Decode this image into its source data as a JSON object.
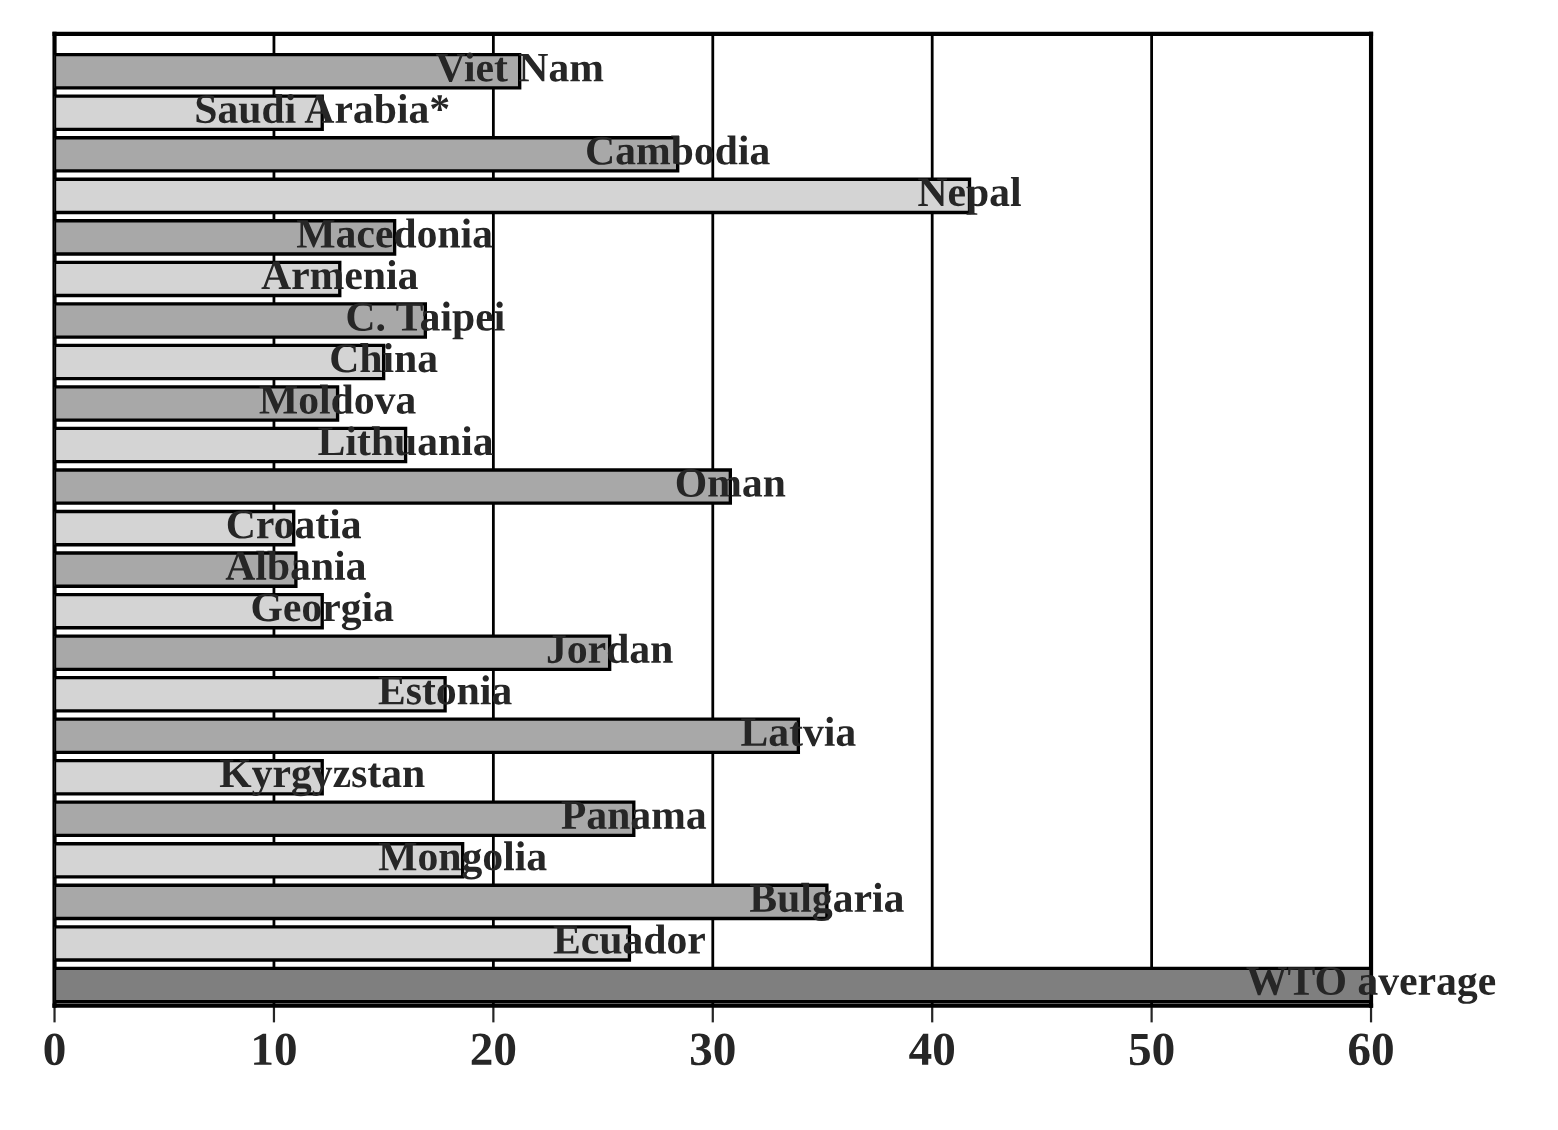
{
  "chart_data": {
    "type": "bar",
    "orientation": "horizontal",
    "categories": [
      "Viet Nam",
      "Saudi Arabia*",
      "Cambodia",
      "Nepal",
      "Macedonia",
      "Armenia",
      "C. Taipei",
      "China",
      "Moldova",
      "Lithuania",
      "Oman",
      "Croatia",
      "Albania",
      "Georgia",
      "Jordan",
      "Estonia",
      "Latvia",
      "Kyrgyzstan",
      "Panama",
      "Mongolia",
      "Bulgaria",
      "Ecuador",
      "WTO average"
    ],
    "values": [
      21.2,
      12.2,
      28.4,
      41.7,
      15.5,
      13,
      16.9,
      15,
      12.9,
      16,
      30.8,
      10.9,
      11,
      12.2,
      25.3,
      17.8,
      33.9,
      12.2,
      26.4,
      18.6,
      35.2,
      26.2,
      60
    ],
    "colors": [
      "#a8a8a8",
      "#d4d4d4",
      "#a8a8a8",
      "#d4d4d4",
      "#a8a8a8",
      "#d4d4d4",
      "#a8a8a8",
      "#d4d4d4",
      "#a8a8a8",
      "#d4d4d4",
      "#a8a8a8",
      "#d4d4d4",
      "#a8a8a8",
      "#d4d4d4",
      "#a8a8a8",
      "#d4d4d4",
      "#a8a8a8",
      "#d4d4d4",
      "#a8a8a8",
      "#d4d4d4",
      "#a8a8a8",
      "#d4d4d4",
      "#7f7f7f"
    ],
    "xlim": [
      0,
      60
    ],
    "xticks": [
      0,
      10,
      20,
      30,
      40,
      50,
      60
    ],
    "grid": "x",
    "tick_labels": "x"
  }
}
